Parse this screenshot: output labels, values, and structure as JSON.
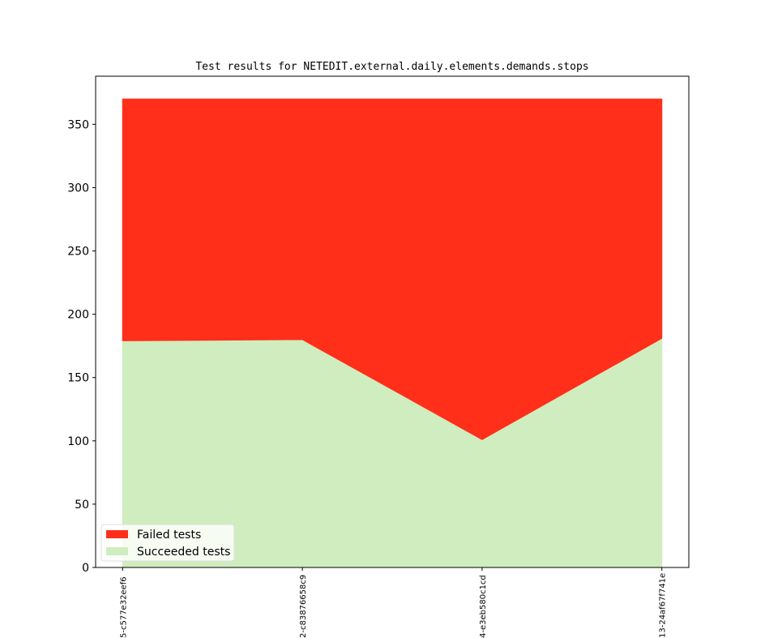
{
  "chart_data": {
    "type": "stacked_area",
    "title": "Test results for NETEDIT.external.daily.elements.demands.stops",
    "categories": [
      "5-c577e32eef6",
      "2-c83876658c9",
      "4-e3eb580c1cd",
      "13-24af67f741e"
    ],
    "series": [
      {
        "name": "Succeeded tests",
        "color": "#cfedbf",
        "values": [
          179,
          180,
          101,
          181
        ]
      },
      {
        "name": "Failed tests",
        "color": "#ff2f1a",
        "values": [
          191,
          190,
          269,
          189
        ]
      }
    ],
    "ylim": [
      0,
      388
    ],
    "yticks": [
      0,
      50,
      100,
      150,
      200,
      250,
      300,
      350
    ],
    "legend": "lower left"
  }
}
